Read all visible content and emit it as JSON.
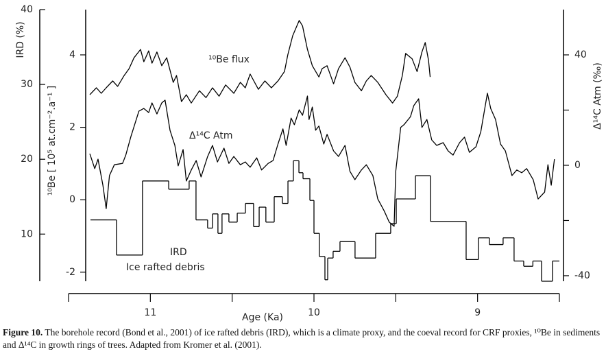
{
  "chart_data": {
    "type": "multi-axis-line",
    "xlabel": "Age (Ka)",
    "ylabel": "IRD (%)",
    "y2label": "¹⁰Be [ 10⁵ at.cm⁻².a⁻¹ ]",
    "y3label": "Δ¹⁴C  Atm (‰)",
    "xlim": [
      11.5,
      8.5
    ],
    "xticks": [
      11,
      10,
      9
    ],
    "xminor_ticks": [
      11.5,
      10.5,
      9.5,
      8.5
    ],
    "ylim": [
      3.7,
      40
    ],
    "yticks": [
      10,
      20,
      30,
      40
    ],
    "y2lim": [
      -2.25,
      5.25
    ],
    "y2ticks": [
      -2,
      0,
      2,
      4
    ],
    "y3lim": [
      -42,
      56.4
    ],
    "y3ticks": [
      -40,
      0,
      40
    ],
    "y3minor_ticks": [
      -20,
      20
    ],
    "annotation": "Ice rafted debris",
    "series": [
      {
        "name": "¹⁰Be flux",
        "type": "line",
        "axis": "y2",
        "color": "#000000",
        "x": [
          11.37,
          11.33,
          11.3,
          11.27,
          11.23,
          11.2,
          11.16,
          11.13,
          11.1,
          11.06,
          11.04,
          11.01,
          10.99,
          10.96,
          10.93,
          10.9,
          10.86,
          10.84,
          10.81,
          10.78,
          10.75,
          10.7,
          10.66,
          10.62,
          10.58,
          10.54,
          10.49,
          10.45,
          10.42,
          10.39,
          10.34,
          10.3,
          10.26,
          10.22,
          10.18,
          10.16,
          10.13,
          10.09,
          10.07,
          10.04,
          10.01,
          9.97,
          9.95,
          9.92,
          9.88,
          9.85,
          9.81,
          9.78,
          9.75,
          9.71,
          9.68,
          9.65,
          9.61,
          9.56,
          9.52,
          9.49,
          9.46,
          9.44,
          9.4,
          9.37,
          9.34,
          9.32,
          9.3,
          9.29
        ],
        "values": [
          2.9,
          3.09,
          2.94,
          3.09,
          3.28,
          3.13,
          3.43,
          3.62,
          3.92,
          4.15,
          3.81,
          4.11,
          3.77,
          4.08,
          3.7,
          3.92,
          3.24,
          3.43,
          2.71,
          2.9,
          2.67,
          3.01,
          2.82,
          3.09,
          2.86,
          3.17,
          2.94,
          3.24,
          3.09,
          3.47,
          3.05,
          3.28,
          3.09,
          3.28,
          3.54,
          4.0,
          4.53,
          4.95,
          4.8,
          4.15,
          3.7,
          3.39,
          3.62,
          3.7,
          3.2,
          3.62,
          3.92,
          3.66,
          3.24,
          3.01,
          3.28,
          3.43,
          3.24,
          2.9,
          2.67,
          2.86,
          3.43,
          4.04,
          3.89,
          3.54,
          4.08,
          4.34,
          3.85,
          3.39
        ]
      },
      {
        "name": "Δ¹⁴C  Atm",
        "type": "line",
        "axis": "y3",
        "color": "#000000",
        "x": [
          11.37,
          11.34,
          11.32,
          11.29,
          11.27,
          11.25,
          11.22,
          11.17,
          11.15,
          11.12,
          11.07,
          11.04,
          11.01,
          10.99,
          10.96,
          10.93,
          10.91,
          10.88,
          10.85,
          10.83,
          10.8,
          10.78,
          10.75,
          10.72,
          10.69,
          10.65,
          10.62,
          10.59,
          10.55,
          10.52,
          10.49,
          10.45,
          10.42,
          10.39,
          10.35,
          10.32,
          10.28,
          10.25,
          10.22,
          10.19,
          10.17,
          10.14,
          10.12,
          10.09,
          10.07,
          10.04,
          10.03,
          10.01,
          9.99,
          9.97,
          9.94,
          9.92,
          9.88,
          9.85,
          9.81,
          9.78,
          9.75,
          9.71,
          9.68,
          9.64,
          9.61,
          9.57,
          9.54,
          9.51,
          9.5,
          9.47,
          9.45,
          9.41,
          9.39,
          9.36,
          9.34,
          9.31,
          9.28,
          9.25,
          9.21,
          9.18,
          9.15,
          9.11,
          9.08,
          9.05,
          9.01,
          8.98,
          8.94,
          8.92,
          8.89,
          8.86,
          8.83,
          8.79,
          8.76,
          8.73,
          8.7,
          8.66,
          8.63,
          8.59,
          8.57,
          8.55,
          8.53
        ],
        "values": [
          4.2,
          -1.2,
          2.2,
          -7.2,
          -15.7,
          -3.7,
          0.2,
          0.7,
          3.7,
          10.2,
          19.6,
          20.6,
          19.1,
          22.6,
          18.6,
          22.6,
          23.6,
          12.7,
          7.2,
          -0.2,
          5.7,
          -5.7,
          -1.7,
          1.7,
          -4.2,
          3.2,
          7.2,
          1.2,
          6.2,
          0.7,
          3.2,
          0.2,
          1.2,
          -0.7,
          2.7,
          -1.7,
          0.7,
          1.7,
          7.7,
          13.2,
          7.2,
          17.1,
          14.7,
          20.1,
          18.1,
          25.1,
          16.6,
          21.1,
          12.7,
          14.2,
          7.7,
          11.2,
          5.2,
          3.2,
          7.2,
          -2.2,
          -5.2,
          -1.7,
          0.2,
          -3.7,
          -12.2,
          -16.6,
          -20.6,
          -22.1,
          -2.2,
          13.7,
          14.7,
          17.6,
          21.6,
          24.1,
          13.7,
          16.6,
          9.2,
          7.2,
          8.2,
          5.2,
          3.7,
          8.2,
          10.2,
          4.7,
          6.7,
          12.2,
          26.1,
          20.6,
          16.6,
          7.7,
          5.2,
          -3.7,
          -1.7,
          -2.7,
          -1.2,
          -5.2,
          -12.2,
          -9.7,
          0.2,
          -7.2,
          2.2
        ]
      },
      {
        "name": "IRD",
        "type": "step",
        "axis": "y",
        "color": "#000000",
        "bins": [
          11.366,
          11.207,
          11.048,
          10.888,
          10.763,
          10.721,
          10.65,
          10.62,
          10.587,
          10.562,
          10.52,
          10.469,
          10.419,
          10.369,
          10.335,
          10.294,
          10.243,
          10.193,
          10.159,
          10.126,
          10.092,
          10.067,
          10.025,
          10.0,
          9.967,
          9.933,
          9.916,
          9.883,
          9.841,
          9.749,
          9.623,
          9.531,
          9.497,
          9.38,
          9.288,
          9.07,
          8.995,
          8.928,
          8.844,
          8.777,
          8.718,
          8.662,
          8.609,
          8.542,
          8.5
        ],
        "values": [
          11.9,
          7.2,
          17.1,
          16.0,
          17.1,
          11.9,
          10.8,
          12.7,
          10.1,
          12.7,
          11.6,
          12.8,
          14.1,
          11.0,
          13.6,
          11.6,
          15.0,
          14.1,
          17.1,
          19.8,
          18.2,
          17.4,
          14.5,
          10.1,
          7.0,
          3.9,
          6.8,
          7.7,
          9.0,
          6.8,
          10.1,
          11.4,
          14.7,
          17.8,
          11.7,
          6.6,
          9.5,
          8.6,
          9.5,
          6.4,
          5.7,
          6.4,
          3.7,
          6.4
        ]
      }
    ]
  },
  "caption": {
    "label": "Figure 10.",
    "text": "The borehole record (Bond et al., 2001) of ice rafted debris (IRD), which is a climate proxy, and the coeval record for CRF proxies, ¹⁰Be in sediments and Δ¹⁴C in growth rings of trees. Adapted from Kromer et al. (2001)."
  }
}
